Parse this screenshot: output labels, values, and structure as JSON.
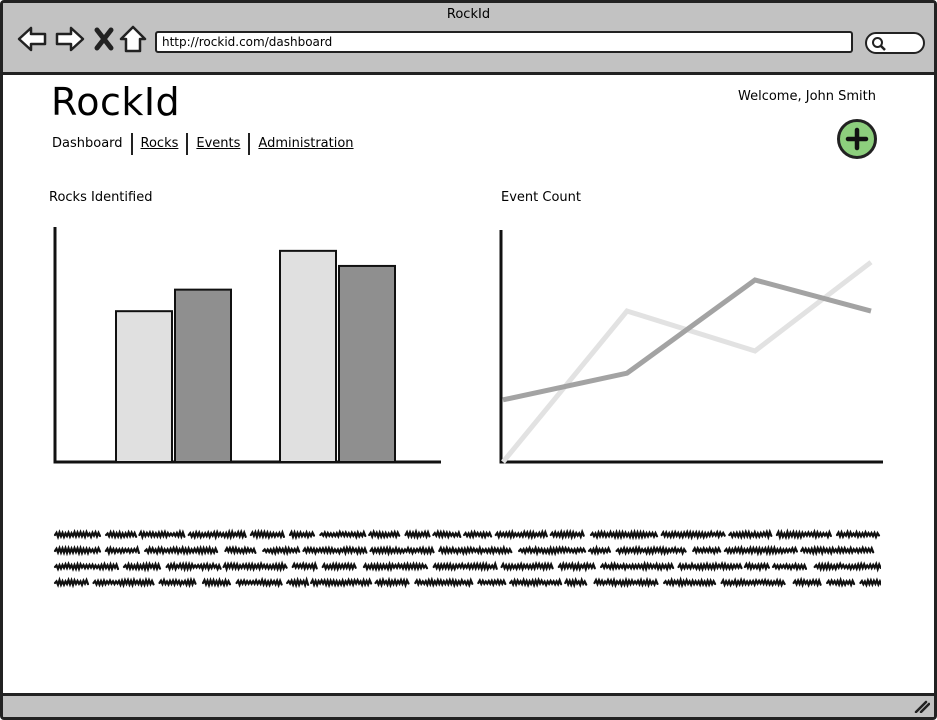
{
  "window": {
    "title": "RockId"
  },
  "browser": {
    "url": "http://rockid.com/dashboard",
    "buttons": {
      "back": "back-icon",
      "forward": "forward-icon",
      "stop": "close-icon",
      "home": "home-icon",
      "search": "search-icon"
    }
  },
  "header": {
    "logo": "RockId",
    "welcome": "Welcome, John Smith",
    "tabs": [
      {
        "label": "Dashboard",
        "active": true
      },
      {
        "label": "Rocks",
        "active": false
      },
      {
        "label": "Events",
        "active": false
      },
      {
        "label": "Administration",
        "active": false
      }
    ],
    "add_button_icon": "plus-icon"
  },
  "colors": {
    "add_button": "#8dcf7d",
    "chrome": "#c2c2c2",
    "series_light": "#e0e0e0",
    "series_dark": "#999999"
  },
  "charts": {
    "rocks": {
      "title": "Rocks Identified",
      "chart_data": {
        "type": "bar",
        "categories": [
          "",
          ""
        ],
        "series": [
          {
            "values": [
              70,
              98
            ],
            "color": "#e0e0e0"
          },
          {
            "values": [
              80,
              91
            ],
            "color": "#8f8f8f"
          }
        ],
        "ylim": [
          0,
          110
        ]
      }
    },
    "events": {
      "title": "Event Count",
      "chart_data": {
        "type": "line",
        "x": [
          1,
          2,
          3,
          4
        ],
        "series": [
          {
            "values": [
              0,
              68,
              50,
              90
            ],
            "color": "#e2e2e2"
          },
          {
            "values": [
              28,
              40,
              82,
              68
            ],
            "color": "#a3a3a3"
          }
        ],
        "ylim": [
          0,
          100
        ]
      }
    }
  },
  "body_text": {
    "lines": 4,
    "placeholder": "scribbled-lorem-ipsum"
  }
}
